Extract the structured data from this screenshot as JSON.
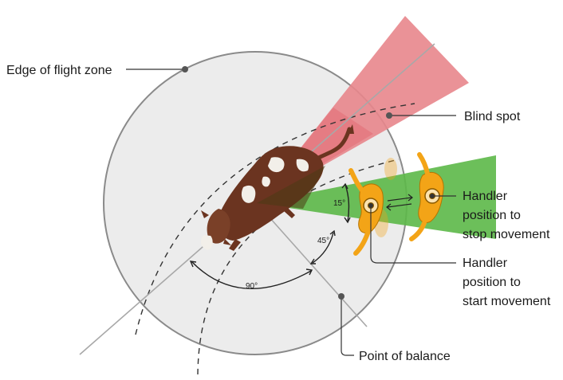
{
  "labels": {
    "edge_of_flight_zone": "Edge of flight zone",
    "blind_spot": "Blind spot",
    "handler_stop": [
      "Handler",
      "position to",
      "stop movement"
    ],
    "handler_start": [
      "Handler",
      "position to",
      "start movement"
    ],
    "point_of_balance": "Point of balance"
  },
  "angles": {
    "angle_15": "15°",
    "angle_45": "45°",
    "angle_90": "90°"
  },
  "colors": {
    "blind_spot": "#e8868c",
    "green_zone": "#5cb848",
    "zone_fill": "#ececec",
    "cow_brown": "#6b3420",
    "handler_orange": "#f3a417"
  },
  "icons": [
    "cow-icon",
    "handler-icon"
  ]
}
